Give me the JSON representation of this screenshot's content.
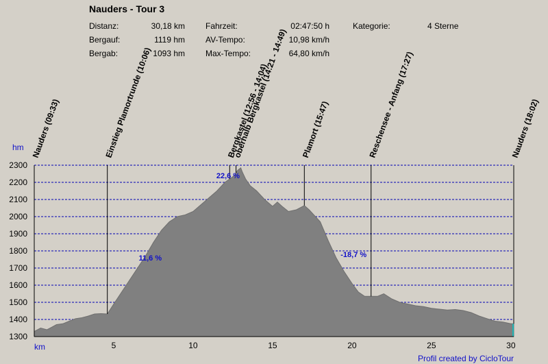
{
  "header": {
    "title": "Nauders - Tour 3",
    "labels": {
      "distance": "Distanz:",
      "climb": "Bergauf:",
      "descent": "Bergab:",
      "time": "Fahrzeit:",
      "avg": "AV-Tempo:",
      "max": "Max-Tempo:",
      "category": "Kategorie:"
    },
    "values": {
      "distance": "30,18 km",
      "climb": "1119 hm",
      "descent": "1093 hm",
      "time": "02:47:50 h",
      "avg": "10,98 km/h",
      "max": "64,80 km/h",
      "category": "4 Sterne"
    }
  },
  "footer": "Profil created by CicloTour",
  "colors": {
    "background": "#d4d0c8",
    "area": "#808080",
    "axis_text": "#1010c8",
    "grid": "#0000b4"
  },
  "chart_data": {
    "type": "area",
    "xlabel": "km",
    "ylabel": "hm",
    "xlim": [
      0,
      30.18
    ],
    "ylim": [
      1300,
      2300
    ],
    "xticks": [
      5,
      10,
      15,
      20,
      25,
      30
    ],
    "yticks": [
      1300,
      1400,
      1500,
      1600,
      1700,
      1800,
      1900,
      2000,
      2100,
      2200,
      2300
    ],
    "grid": "horizontal dashed",
    "x": [
      0,
      0.4,
      0.8,
      1.1,
      1.4,
      1.8,
      2.2,
      2.6,
      3.0,
      3.4,
      3.8,
      4.2,
      4.6,
      5.0,
      5.5,
      6.0,
      6.5,
      7.0,
      7.5,
      8.0,
      8.5,
      9.0,
      9.5,
      10.0,
      10.5,
      11.0,
      11.5,
      12.0,
      12.3,
      12.6,
      12.8,
      13.0,
      13.1,
      13.3,
      13.6,
      14.0,
      14.5,
      15.0,
      15.3,
      15.6,
      16.0,
      16.5,
      17.0,
      17.3,
      17.6,
      18.0,
      18.5,
      19.0,
      19.5,
      20.0,
      20.4,
      20.8,
      21.2,
      21.6,
      22.0,
      22.5,
      23.0,
      23.5,
      24.0,
      24.5,
      25.0,
      25.5,
      26.0,
      26.5,
      27.0,
      27.5,
      28.0,
      28.5,
      29.0,
      29.5,
      30.0,
      30.18
    ],
    "y": [
      1330,
      1350,
      1340,
      1355,
      1370,
      1375,
      1390,
      1405,
      1410,
      1420,
      1432,
      1434,
      1432,
      1490,
      1560,
      1630,
      1700,
      1770,
      1850,
      1920,
      1970,
      2000,
      2010,
      2030,
      2070,
      2110,
      2150,
      2200,
      2220,
      2240,
      2270,
      2285,
      2260,
      2220,
      2180,
      2150,
      2100,
      2060,
      2085,
      2060,
      2030,
      2040,
      2065,
      2040,
      2010,
      1970,
      1860,
      1760,
      1680,
      1610,
      1560,
      1535,
      1535,
      1535,
      1550,
      1520,
      1500,
      1490,
      1480,
      1475,
      1465,
      1460,
      1455,
      1458,
      1452,
      1440,
      1420,
      1405,
      1390,
      1385,
      1375,
      1375
    ],
    "waypoints": [
      {
        "x": 0,
        "label": "Nauders (09:33)"
      },
      {
        "x": 4.6,
        "label": "Einstieg Plamortrunde (10:06)"
      },
      {
        "x": 12.3,
        "label": "Bergkastel (12:56 - 14:04)"
      },
      {
        "x": 12.7,
        "label": "oberhalb Bergkastel (14:21 - 14:49)"
      },
      {
        "x": 17.0,
        "label": "Plamort (15:47)"
      },
      {
        "x": 21.2,
        "label": "Reschensee - Anfang (17:27)"
      },
      {
        "x": 30.18,
        "label": "Nauders (18:02)"
      }
    ],
    "annotations": [
      {
        "x": 7.3,
        "y": 1745,
        "text": "11,6 %"
      },
      {
        "x": 12.2,
        "y": 2225,
        "text": "22,6 %"
      },
      {
        "x": 20.1,
        "y": 1765,
        "text": "-18,7 %"
      }
    ]
  }
}
